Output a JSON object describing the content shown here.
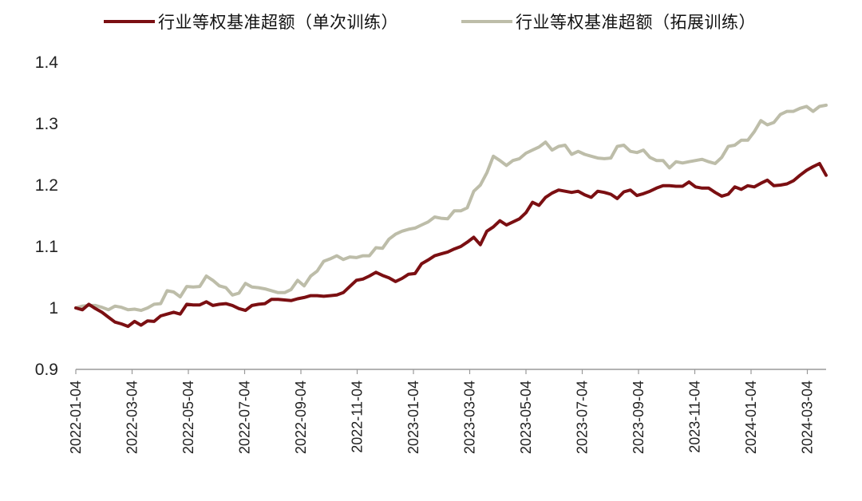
{
  "chart_data": {
    "type": "line",
    "title": "",
    "xlabel": "",
    "ylabel": "",
    "ylim": [
      0.9,
      1.4
    ],
    "yticks": [
      "0.9",
      "1",
      "1.1",
      "1.2",
      "1.3",
      "1.4"
    ],
    "ytick_values": [
      0.9,
      1.0,
      1.1,
      1.2,
      1.3,
      1.4
    ],
    "xticks": [
      "2022-01-04",
      "2022-03-04",
      "2022-05-04",
      "2022-07-04",
      "2022-09-04",
      "2022-11-04",
      "2023-01-04",
      "2023-03-04",
      "2023-05-04",
      "2023-07-04",
      "2023-09-04",
      "2023-11-04",
      "2024-01-04",
      "2024-03-04"
    ],
    "grid": false,
    "legend_position": "top",
    "series": [
      {
        "name": "行业等权基准超额（单次训练）",
        "color": "#7B0F12",
        "points": [
          [
            0,
            1.0
          ],
          [
            1,
            0.997
          ],
          [
            2,
            1.006
          ],
          [
            3,
            0.999
          ],
          [
            4,
            0.993
          ],
          [
            5,
            0.985
          ],
          [
            6,
            0.977
          ],
          [
            7,
            0.974
          ],
          [
            8,
            0.97
          ],
          [
            9,
            0.978
          ],
          [
            10,
            0.972
          ],
          [
            11,
            0.979
          ],
          [
            12,
            0.978
          ],
          [
            13,
            0.987
          ],
          [
            14,
            0.99
          ],
          [
            15,
            0.993
          ],
          [
            16,
            0.99
          ],
          [
            17,
            1.006
          ],
          [
            18,
            1.005
          ],
          [
            19,
            1.005
          ],
          [
            20,
            1.01
          ],
          [
            21,
            1.004
          ],
          [
            22,
            1.006
          ],
          [
            23,
            1.007
          ],
          [
            24,
            1.004
          ],
          [
            25,
            0.999
          ],
          [
            26,
            0.996
          ],
          [
            27,
            1.004
          ],
          [
            28,
            1.006
          ],
          [
            29,
            1.007
          ],
          [
            30,
            1.014
          ],
          [
            31,
            1.014
          ],
          [
            32,
            1.013
          ],
          [
            33,
            1.012
          ],
          [
            34,
            1.015
          ],
          [
            35,
            1.017
          ],
          [
            36,
            1.02
          ],
          [
            37,
            1.02
          ],
          [
            38,
            1.019
          ],
          [
            39,
            1.02
          ],
          [
            40,
            1.021
          ],
          [
            41,
            1.025
          ],
          [
            42,
            1.035
          ],
          [
            43,
            1.045
          ],
          [
            44,
            1.047
          ],
          [
            45,
            1.052
          ],
          [
            46,
            1.058
          ],
          [
            47,
            1.053
          ],
          [
            48,
            1.049
          ],
          [
            49,
            1.043
          ],
          [
            50,
            1.048
          ],
          [
            51,
            1.055
          ],
          [
            52,
            1.056
          ],
          [
            53,
            1.072
          ],
          [
            54,
            1.078
          ],
          [
            55,
            1.085
          ],
          [
            56,
            1.088
          ],
          [
            57,
            1.091
          ],
          [
            58,
            1.096
          ],
          [
            59,
            1.1
          ],
          [
            60,
            1.107
          ],
          [
            61,
            1.115
          ],
          [
            62,
            1.103
          ],
          [
            63,
            1.125
          ],
          [
            64,
            1.132
          ],
          [
            65,
            1.142
          ],
          [
            66,
            1.135
          ],
          [
            67,
            1.14
          ],
          [
            68,
            1.145
          ],
          [
            69,
            1.155
          ],
          [
            70,
            1.172
          ],
          [
            71,
            1.167
          ],
          [
            72,
            1.18
          ],
          [
            73,
            1.187
          ],
          [
            74,
            1.192
          ],
          [
            75,
            1.19
          ],
          [
            76,
            1.188
          ],
          [
            77,
            1.19
          ],
          [
            78,
            1.184
          ],
          [
            79,
            1.18
          ],
          [
            80,
            1.19
          ],
          [
            81,
            1.188
          ],
          [
            82,
            1.185
          ],
          [
            83,
            1.178
          ],
          [
            84,
            1.189
          ],
          [
            85,
            1.192
          ],
          [
            86,
            1.183
          ],
          [
            87,
            1.186
          ],
          [
            88,
            1.19
          ],
          [
            89,
            1.195
          ],
          [
            90,
            1.199
          ],
          [
            91,
            1.199
          ],
          [
            92,
            1.198
          ],
          [
            93,
            1.198
          ],
          [
            94,
            1.205
          ],
          [
            95,
            1.197
          ],
          [
            96,
            1.195
          ],
          [
            97,
            1.195
          ],
          [
            98,
            1.188
          ],
          [
            99,
            1.182
          ],
          [
            100,
            1.185
          ],
          [
            101,
            1.197
          ],
          [
            102,
            1.193
          ],
          [
            103,
            1.199
          ],
          [
            104,
            1.197
          ],
          [
            105,
            1.203
          ],
          [
            106,
            1.208
          ],
          [
            107,
            1.199
          ],
          [
            108,
            1.2
          ],
          [
            109,
            1.202
          ],
          [
            110,
            1.207
          ],
          [
            111,
            1.216
          ],
          [
            112,
            1.224
          ],
          [
            113,
            1.23
          ],
          [
            114,
            1.235
          ],
          [
            115,
            1.216
          ]
        ]
      },
      {
        "name": "行业等权基准超额（拓展训练）",
        "color": "#BDBDA9",
        "points": [
          [
            0,
            1.0
          ],
          [
            1,
            1.003
          ],
          [
            2,
            1.004
          ],
          [
            3,
            1.004
          ],
          [
            4,
            1.001
          ],
          [
            5,
            0.997
          ],
          [
            6,
            1.003
          ],
          [
            7,
            1.001
          ],
          [
            8,
            0.997
          ],
          [
            9,
            0.998
          ],
          [
            10,
            0.996
          ],
          [
            11,
            1.0
          ],
          [
            12,
            1.006
          ],
          [
            13,
            1.007
          ],
          [
            14,
            1.028
          ],
          [
            15,
            1.026
          ],
          [
            16,
            1.018
          ],
          [
            17,
            1.035
          ],
          [
            18,
            1.034
          ],
          [
            19,
            1.035
          ],
          [
            20,
            1.052
          ],
          [
            21,
            1.045
          ],
          [
            22,
            1.036
          ],
          [
            23,
            1.033
          ],
          [
            24,
            1.021
          ],
          [
            25,
            1.024
          ],
          [
            26,
            1.04
          ],
          [
            27,
            1.034
          ],
          [
            28,
            1.033
          ],
          [
            29,
            1.031
          ],
          [
            30,
            1.028
          ],
          [
            31,
            1.025
          ],
          [
            32,
            1.025
          ],
          [
            33,
            1.03
          ],
          [
            34,
            1.045
          ],
          [
            35,
            1.036
          ],
          [
            36,
            1.052
          ],
          [
            37,
            1.06
          ],
          [
            38,
            1.076
          ],
          [
            39,
            1.08
          ],
          [
            40,
            1.085
          ],
          [
            41,
            1.079
          ],
          [
            42,
            1.083
          ],
          [
            43,
            1.082
          ],
          [
            44,
            1.085
          ],
          [
            45,
            1.085
          ],
          [
            46,
            1.098
          ],
          [
            47,
            1.097
          ],
          [
            48,
            1.112
          ],
          [
            49,
            1.12
          ],
          [
            50,
            1.125
          ],
          [
            51,
            1.128
          ],
          [
            52,
            1.13
          ],
          [
            53,
            1.135
          ],
          [
            54,
            1.14
          ],
          [
            55,
            1.148
          ],
          [
            56,
            1.146
          ],
          [
            57,
            1.145
          ],
          [
            58,
            1.158
          ],
          [
            59,
            1.158
          ],
          [
            60,
            1.163
          ],
          [
            61,
            1.19
          ],
          [
            62,
            1.2
          ],
          [
            63,
            1.22
          ],
          [
            64,
            1.247
          ],
          [
            65,
            1.24
          ],
          [
            66,
            1.232
          ],
          [
            67,
            1.24
          ],
          [
            68,
            1.243
          ],
          [
            69,
            1.252
          ],
          [
            70,
            1.257
          ],
          [
            71,
            1.262
          ],
          [
            72,
            1.27
          ],
          [
            73,
            1.257
          ],
          [
            74,
            1.263
          ],
          [
            75,
            1.265
          ],
          [
            76,
            1.25
          ],
          [
            77,
            1.255
          ],
          [
            78,
            1.25
          ],
          [
            79,
            1.247
          ],
          [
            80,
            1.244
          ],
          [
            81,
            1.243
          ],
          [
            82,
            1.244
          ],
          [
            83,
            1.263
          ],
          [
            84,
            1.265
          ],
          [
            85,
            1.255
          ],
          [
            86,
            1.253
          ],
          [
            87,
            1.257
          ],
          [
            88,
            1.245
          ],
          [
            89,
            1.24
          ],
          [
            90,
            1.24
          ],
          [
            91,
            1.228
          ],
          [
            92,
            1.238
          ],
          [
            93,
            1.236
          ],
          [
            94,
            1.238
          ],
          [
            95,
            1.24
          ],
          [
            96,
            1.242
          ],
          [
            97,
            1.238
          ],
          [
            98,
            1.235
          ],
          [
            99,
            1.245
          ],
          [
            100,
            1.263
          ],
          [
            101,
            1.265
          ],
          [
            102,
            1.273
          ],
          [
            103,
            1.273
          ],
          [
            104,
            1.287
          ],
          [
            105,
            1.305
          ],
          [
            106,
            1.298
          ],
          [
            107,
            1.302
          ],
          [
            108,
            1.315
          ],
          [
            109,
            1.32
          ],
          [
            110,
            1.32
          ],
          [
            111,
            1.325
          ],
          [
            112,
            1.328
          ],
          [
            113,
            1.32
          ],
          [
            114,
            1.328
          ],
          [
            115,
            1.33
          ]
        ]
      }
    ]
  }
}
